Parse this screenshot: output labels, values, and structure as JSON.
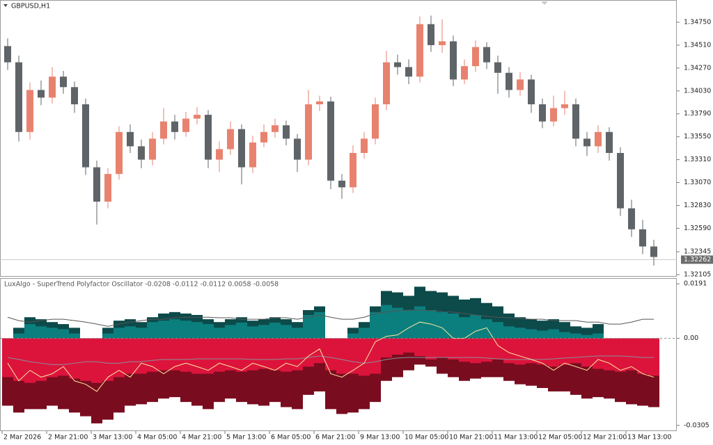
{
  "chart_data": [
    {
      "type": "candlestick",
      "title": "GBPUSD,H1",
      "candles": [
        [
          1.345,
          1.3458,
          1.3425,
          1.3433
        ],
        [
          1.3433,
          1.344,
          1.335,
          1.336
        ],
        [
          1.336,
          1.3412,
          1.3352,
          1.3404
        ],
        [
          1.3404,
          1.3414,
          1.3388,
          1.3396
        ],
        [
          1.3396,
          1.3428,
          1.339,
          1.3418
        ],
        [
          1.3418,
          1.3424,
          1.34,
          1.3407
        ],
        [
          1.3407,
          1.3413,
          1.338,
          1.3389
        ],
        [
          1.3389,
          1.3395,
          1.3315,
          1.3323
        ],
        [
          1.3323,
          1.333,
          1.3263,
          1.3287
        ],
        [
          1.3287,
          1.3322,
          1.328,
          1.3316
        ],
        [
          1.3316,
          1.3366,
          1.331,
          1.336
        ],
        [
          1.336,
          1.3368,
          1.3338,
          1.3345
        ],
        [
          1.3345,
          1.3352,
          1.3322,
          1.3331
        ],
        [
          1.3331,
          1.336,
          1.3325,
          1.3353
        ],
        [
          1.3353,
          1.3385,
          1.3347,
          1.3371
        ],
        [
          1.3371,
          1.3378,
          1.3352,
          1.336
        ],
        [
          1.336,
          1.3381,
          1.3355,
          1.3374
        ],
        [
          1.3374,
          1.3386,
          1.3368,
          1.3378
        ],
        [
          1.3378,
          1.3383,
          1.3322,
          1.3331
        ],
        [
          1.3331,
          1.335,
          1.3318,
          1.3342
        ],
        [
          1.3342,
          1.3371,
          1.3336,
          1.3363
        ],
        [
          1.3363,
          1.3368,
          1.3305,
          1.3323
        ],
        [
          1.3323,
          1.3356,
          1.3317,
          1.3349
        ],
        [
          1.3349,
          1.3368,
          1.3344,
          1.336
        ],
        [
          1.336,
          1.3374,
          1.3354,
          1.3367
        ],
        [
          1.3367,
          1.3372,
          1.3346,
          1.3353
        ],
        [
          1.3353,
          1.3358,
          1.3318,
          1.3331
        ],
        [
          1.3331,
          1.3404,
          1.3325,
          1.3389
        ],
        [
          1.3389,
          1.3398,
          1.3382,
          1.3392
        ],
        [
          1.3392,
          1.3397,
          1.33,
          1.3309
        ],
        [
          1.3309,
          1.3316,
          1.329,
          1.3302
        ],
        [
          1.3302,
          1.3346,
          1.3296,
          1.3338
        ],
        [
          1.3338,
          1.336,
          1.3332,
          1.3353
        ],
        [
          1.3353,
          1.3396,
          1.3347,
          1.3389
        ],
        [
          1.3389,
          1.3445,
          1.3383,
          1.3433
        ],
        [
          1.3433,
          1.3441,
          1.342,
          1.3428
        ],
        [
          1.3428,
          1.3436,
          1.341,
          1.3418
        ],
        [
          1.3418,
          1.3481,
          1.3412,
          1.3473
        ],
        [
          1.3473,
          1.3482,
          1.3444,
          1.3451
        ],
        [
          1.3451,
          1.3478,
          1.3443,
          1.3455
        ],
        [
          1.3455,
          1.3461,
          1.3408,
          1.3415
        ],
        [
          1.3415,
          1.3436,
          1.341,
          1.3429
        ],
        [
          1.3429,
          1.3456,
          1.3423,
          1.3449
        ],
        [
          1.3449,
          1.3454,
          1.3426,
          1.3433
        ],
        [
          1.3433,
          1.344,
          1.34,
          1.3422
        ],
        [
          1.3422,
          1.3428,
          1.3396,
          1.3404
        ],
        [
          1.3404,
          1.3423,
          1.3398,
          1.3415
        ],
        [
          1.3415,
          1.342,
          1.338,
          1.3389
        ],
        [
          1.3389,
          1.3395,
          1.3364,
          1.3371
        ],
        [
          1.3371,
          1.3398,
          1.3366,
          1.3385
        ],
        [
          1.3385,
          1.3403,
          1.3378,
          1.3389
        ],
        [
          1.3389,
          1.3395,
          1.3345,
          1.3353
        ],
        [
          1.3353,
          1.336,
          1.3335,
          1.3345
        ],
        [
          1.3345,
          1.3367,
          1.3338,
          1.336
        ],
        [
          1.336,
          1.3365,
          1.333,
          1.3338
        ],
        [
          1.3338,
          1.3344,
          1.3272,
          1.328
        ],
        [
          1.328,
          1.3289,
          1.325,
          1.3258
        ],
        [
          1.3258,
          1.3268,
          1.3232,
          1.324
        ],
        [
          1.324,
          1.3247,
          1.322,
          1.3229
        ]
      ],
      "up_color": "#e8826f",
      "down_color": "#5f6468",
      "ylim": [
        1.32083,
        1.34983
      ],
      "yticks": [
        {
          "value": 1.3475,
          "label": "1.34750"
        },
        {
          "value": 1.3451,
          "label": "1.34510"
        },
        {
          "value": 1.3427,
          "label": "1.34270"
        },
        {
          "value": 1.3403,
          "label": "1.34030"
        },
        {
          "value": 1.3379,
          "label": "1.33790"
        },
        {
          "value": 1.3355,
          "label": "1.33550"
        },
        {
          "value": 1.3331,
          "label": "1.33310"
        },
        {
          "value": 1.3307,
          "label": "1.33070"
        },
        {
          "value": 1.3283,
          "label": "1.32830"
        },
        {
          "value": 1.3259,
          "label": "1.32590"
        },
        1.32345,
        1.32105
      ],
      "last_price": 1.32262,
      "xticks": [
        {
          "value": 0,
          "label": "2 Mar 2026"
        },
        {
          "value": 4,
          "label": "2 Mar 21:00"
        },
        {
          "value": 8,
          "label": "3 Mar 13:00"
        },
        {
          "value": 12,
          "label": "4 Mar 05:00"
        },
        {
          "value": 16,
          "label": "4 Mar 21:00"
        },
        {
          "value": 20,
          "label": "5 Mar 13:00"
        },
        {
          "value": 24,
          "label": "6 Mar 05:00"
        },
        {
          "value": 28,
          "label": "6 Mar 21:00"
        },
        {
          "value": 32,
          "label": "9 Mar 13:00"
        },
        {
          "value": 36,
          "label": "10 Mar 05:00"
        },
        {
          "value": 40,
          "label": "10 Mar 21:00"
        },
        {
          "value": 44,
          "label": "11 Mar 13:00"
        },
        {
          "value": 48,
          "label": "12 Mar 05:00"
        },
        {
          "value": 52,
          "label": "12 Mar 21:00"
        },
        {
          "value": 56,
          "label": "13 Mar 13:00"
        }
      ]
    },
    {
      "type": "oscillator",
      "title": "LuxAlgo - SuperTrend Polyfactor Oscillator -0.0208 -0.0112 -0.0112 0.0058 -0.0058",
      "ylim": [
        -0.0325,
        0.0211
      ],
      "yticks": [
        0.0191,
        {
          "value": 0,
          "label": "0.00"
        },
        -0.0305
      ],
      "series": [
        {
          "kind": "bar",
          "color": "#0d4a4a",
          "values": [
            0,
            0.0037,
            0.0074,
            0.0067,
            0.0057,
            0.005,
            0.0037,
            0,
            0,
            0.0037,
            0.0062,
            0.0067,
            0.0057,
            0.0074,
            0.0087,
            0.0092,
            0.0087,
            0.0082,
            0.0067,
            0.0057,
            0.0067,
            0.0074,
            0.0062,
            0.0067,
            0.0074,
            0.0067,
            0.0057,
            0.0099,
            0.0112,
            0,
            0,
            0.0037,
            0.0057,
            0.0112,
            0.0166,
            0.0161,
            0.0149,
            0.0181,
            0.0166,
            0.0161,
            0.0149,
            0.0136,
            0.0141,
            0.0124,
            0.0112,
            0.0087,
            0.0074,
            0.0067,
            0.0062,
            0.0067,
            0.0057,
            0.0042,
            0.0037,
            0.005,
            0,
            0,
            0,
            0,
            0
          ]
        },
        {
          "kind": "bar",
          "color": "#0b7f7e",
          "values": [
            0,
            0.0017,
            0.005,
            0.0042,
            0.0037,
            0.0032,
            0.0017,
            0,
            0,
            0.0017,
            0.0037,
            0.0042,
            0.0037,
            0.0057,
            0.0062,
            0.0067,
            0.0062,
            0.0057,
            0.005,
            0.0037,
            0.0047,
            0.0055,
            0.0042,
            0.0047,
            0.0055,
            0.0047,
            0.0037,
            0.0082,
            0.0092,
            0,
            0,
            0.0017,
            0.0037,
            0.0092,
            0.0117,
            0.0107,
            0.0099,
            0.0112,
            0.0099,
            0.0092,
            0.0087,
            0.0074,
            0.0082,
            0.0067,
            0.0057,
            0.0042,
            0.0037,
            0.0032,
            0.0027,
            0.0032,
            0.0022,
            0.0017,
            0.0012,
            0.0017,
            0,
            0,
            0,
            0,
            0
          ]
        },
        {
          "kind": "bar",
          "color": "#7a0c1f",
          "values": [
            -0.0236,
            -0.026,
            -0.0248,
            -0.0248,
            -0.0236,
            -0.0248,
            -0.026,
            -0.0273,
            -0.0298,
            -0.0285,
            -0.026,
            -0.0236,
            -0.0231,
            -0.0223,
            -0.0211,
            -0.0206,
            -0.0223,
            -0.0236,
            -0.0248,
            -0.0223,
            -0.0211,
            -0.0223,
            -0.0231,
            -0.0236,
            -0.0223,
            -0.0241,
            -0.0248,
            -0.0198,
            -0.0186,
            -0.0248,
            -0.0265,
            -0.026,
            -0.0248,
            -0.0223,
            -0.0149,
            -0.0136,
            -0.0112,
            -0.0092,
            -0.0099,
            -0.0124,
            -0.0136,
            -0.0149,
            -0.0141,
            -0.0136,
            -0.0136,
            -0.0149,
            -0.0161,
            -0.0166,
            -0.0174,
            -0.0186,
            -0.0186,
            -0.0198,
            -0.0211,
            -0.0206,
            -0.0211,
            -0.0223,
            -0.0231,
            -0.0236,
            -0.0241
          ]
        },
        {
          "kind": "bar",
          "color": "#dc143c",
          "values": [
            -0.0136,
            -0.0149,
            -0.0156,
            -0.0149,
            -0.0136,
            -0.0131,
            -0.0141,
            -0.0149,
            -0.0156,
            -0.0149,
            -0.0136,
            -0.0124,
            -0.0124,
            -0.0117,
            -0.0112,
            -0.0112,
            -0.0117,
            -0.0124,
            -0.0124,
            -0.0117,
            -0.0112,
            -0.0117,
            -0.0112,
            -0.0107,
            -0.0112,
            -0.0117,
            -0.0112,
            -0.0099,
            -0.0087,
            -0.0112,
            -0.0124,
            -0.0124,
            -0.0131,
            -0.0124,
            -0.0067,
            -0.0057,
            -0.005,
            -0.0062,
            -0.0074,
            -0.0067,
            -0.0074,
            -0.0082,
            -0.0087,
            -0.0082,
            -0.0074,
            -0.0087,
            -0.0092,
            -0.0087,
            -0.0092,
            -0.0099,
            -0.0092,
            -0.0087,
            -0.0099,
            -0.0107,
            -0.0112,
            -0.0117,
            -0.0112,
            -0.0124,
            -0.0131
          ]
        },
        {
          "kind": "line",
          "color": "#555555",
          "values": [
            0.0074,
            0.0062,
            0.0057,
            0.0062,
            0.0067,
            0.0067,
            0.0062,
            0.0057,
            0.005,
            0.0042,
            0.005,
            0.0057,
            0.0062,
            0.0067,
            0.0067,
            0.0072,
            0.0074,
            0.0074,
            0.0074,
            0.0072,
            0.0072,
            0.0067,
            0.0067,
            0.0067,
            0.0072,
            0.0072,
            0.0067,
            0.0074,
            0.0082,
            0.0074,
            0.0067,
            0.0067,
            0.0074,
            0.0087,
            0.0092,
            0.0097,
            0.0099,
            0.0099,
            0.0097,
            0.0094,
            0.0092,
            0.0087,
            0.0082,
            0.0077,
            0.0074,
            0.0072,
            0.0069,
            0.0067,
            0.0067,
            0.0062,
            0.0062,
            0.0062,
            0.0057,
            0.0057,
            0.005,
            0.005,
            0.0057,
            0.0067,
            0.0067
          ]
        },
        {
          "kind": "line",
          "color": "#8a8f99",
          "values": [
            -0.0067,
            -0.0074,
            -0.0082,
            -0.0087,
            -0.0092,
            -0.0092,
            -0.0087,
            -0.0082,
            -0.0082,
            -0.0087,
            -0.0087,
            -0.0082,
            -0.0082,
            -0.0077,
            -0.0074,
            -0.0074,
            -0.0074,
            -0.0072,
            -0.0072,
            -0.0072,
            -0.0072,
            -0.0072,
            -0.0074,
            -0.0074,
            -0.0074,
            -0.0072,
            -0.0072,
            -0.0067,
            -0.0062,
            -0.0067,
            -0.0074,
            -0.0082,
            -0.0087,
            -0.0082,
            -0.0074,
            -0.0069,
            -0.0067,
            -0.0067,
            -0.0067,
            -0.0067,
            -0.0067,
            -0.0067,
            -0.0067,
            -0.0069,
            -0.0072,
            -0.0074,
            -0.0074,
            -0.0074,
            -0.0074,
            -0.0072,
            -0.0069,
            -0.0067,
            -0.0064,
            -0.0062,
            -0.0062,
            -0.0062,
            -0.0064,
            -0.0067,
            -0.0067
          ]
        },
        {
          "kind": "line",
          "color": "#ffe8a0",
          "values": [
            -0.0087,
            -0.0149,
            -0.0112,
            -0.0136,
            -0.0124,
            -0.0099,
            -0.0149,
            -0.0161,
            -0.0186,
            -0.0136,
            -0.0112,
            -0.0136,
            -0.0087,
            -0.0099,
            -0.0124,
            -0.0099,
            -0.0087,
            -0.0099,
            -0.0112,
            -0.0087,
            -0.0099,
            -0.0112,
            -0.0087,
            -0.0099,
            -0.0112,
            -0.0087,
            -0.0099,
            -0.0062,
            -0.0037,
            -0.0124,
            -0.0136,
            -0.0112,
            -0.0087,
            -0.0012,
            0.0007,
            0.0012,
            0.0037,
            0.0057,
            0.005,
            0.0037,
            0,
            0,
            0.0025,
            0.0037,
            -0.0025,
            -0.005,
            -0.0062,
            -0.0074,
            -0.0087,
            -0.0112,
            -0.0087,
            -0.0099,
            -0.0112,
            -0.0074,
            -0.0087,
            -0.0112,
            -0.0099,
            -0.0124,
            -0.0136
          ]
        }
      ]
    }
  ]
}
